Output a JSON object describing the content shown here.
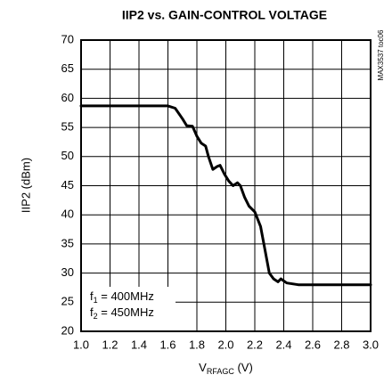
{
  "chart_data": {
    "type": "line",
    "title": "IIP2 vs. GAIN-CONTROL VOLTAGE",
    "side_label": "MAX3537 toc06",
    "y_label": "IIP2 (dBm)",
    "x_label": {
      "symbol": "V",
      "sub": "RFAGC",
      "text": " (V)"
    },
    "annotations": [
      {
        "symbol": "f",
        "sub": "1",
        "text": " = 400MHz"
      },
      {
        "symbol": "f",
        "sub": "2",
        "text": " = 450MHz"
      }
    ],
    "xlim": [
      1.0,
      3.0
    ],
    "ylim": [
      20,
      70
    ],
    "xticks": [
      {
        "value": 1,
        "label": "1.0"
      },
      1.2,
      1.4,
      1.6,
      1.8,
      {
        "value": 2,
        "label": "2.0"
      },
      2.2,
      2.4,
      2.6,
      2.8,
      {
        "value": 3,
        "label": "3.0"
      }
    ],
    "yticks": [
      20,
      25,
      30,
      35,
      40,
      45,
      50,
      55,
      60,
      65,
      70
    ],
    "grid": true,
    "x": [
      1.0,
      1.6,
      1.65,
      1.7,
      1.73,
      1.77,
      1.8,
      1.83,
      1.86,
      1.88,
      1.91,
      1.94,
      1.96,
      1.99,
      2.02,
      2.05,
      2.08,
      2.1,
      2.13,
      2.16,
      2.2,
      2.24,
      2.27,
      2.3,
      2.33,
      2.36,
      2.38,
      2.42,
      2.5,
      3.0
    ],
    "series": [
      {
        "color": "#000000",
        "values": [
          58.7,
          58.7,
          58.3,
          56.5,
          55.3,
          55.2,
          53.5,
          52.3,
          51.8,
          50,
          47.8,
          48.3,
          48.5,
          47,
          45.8,
          45,
          45.5,
          45,
          43,
          41.5,
          40.5,
          38,
          34,
          30,
          29,
          28.5,
          29,
          28.3,
          28,
          28
        ]
      }
    ]
  }
}
